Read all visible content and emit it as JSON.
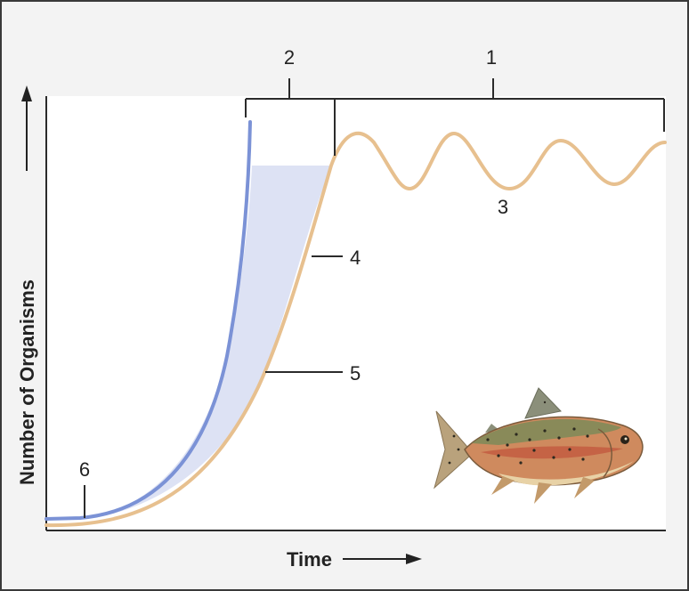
{
  "diagram": {
    "axes": {
      "y_label": "Number of Organisms",
      "x_label": "Time"
    },
    "labels": {
      "one": "1",
      "two": "2",
      "three": "3",
      "four": "4",
      "five": "5",
      "six": "6"
    },
    "colors": {
      "background": "#f3f3f3",
      "plot_area": "#ffffff",
      "exponential_curve": "#7b92d6",
      "logistic_curve": "#e7c08f",
      "shaded_region": "#dde2f4",
      "line": "#2b2b2b"
    },
    "icons": [
      "up-arrow-icon",
      "right-arrow-icon",
      "trout-fish-icon"
    ]
  }
}
